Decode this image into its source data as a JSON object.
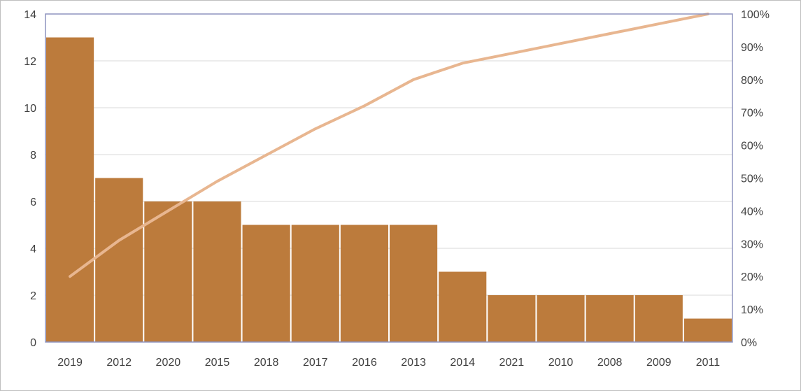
{
  "chart_data": {
    "type": "bar",
    "title": "",
    "xlabel": "",
    "ylabel": "",
    "categories": [
      "2019",
      "2012",
      "2020",
      "2015",
      "2018",
      "2017",
      "2016",
      "2013",
      "2014",
      "2021",
      "2010",
      "2008",
      "2009",
      "2011"
    ],
    "series": [
      {
        "type": "bar",
        "axis": "left",
        "values": [
          13,
          7,
          6,
          6,
          5,
          5,
          5,
          5,
          3,
          2,
          2,
          2,
          2,
          1
        ]
      },
      {
        "type": "line",
        "axis": "right",
        "values": [
          0.2,
          0.31,
          0.4,
          0.49,
          0.57,
          0.65,
          0.72,
          0.8,
          0.85,
          0.88,
          0.91,
          0.94,
          0.97,
          1.0
        ]
      }
    ],
    "ylim": [
      0,
      14
    ],
    "yticks": [
      "0",
      "2",
      "4",
      "6",
      "8",
      "10",
      "12",
      "14"
    ],
    "y2lim": [
      0,
      1
    ],
    "y2ticks": [
      "0%",
      "10%",
      "20%",
      "30%",
      "40%",
      "50%",
      "60%",
      "70%",
      "80%",
      "90%",
      "100%"
    ],
    "grid": true,
    "legend": "none",
    "colors": {
      "bar": "#bc7b3c",
      "line": "#e8b690",
      "grid": "#d9d9d9",
      "axis": "#8d94bf",
      "text": "#404040"
    }
  }
}
